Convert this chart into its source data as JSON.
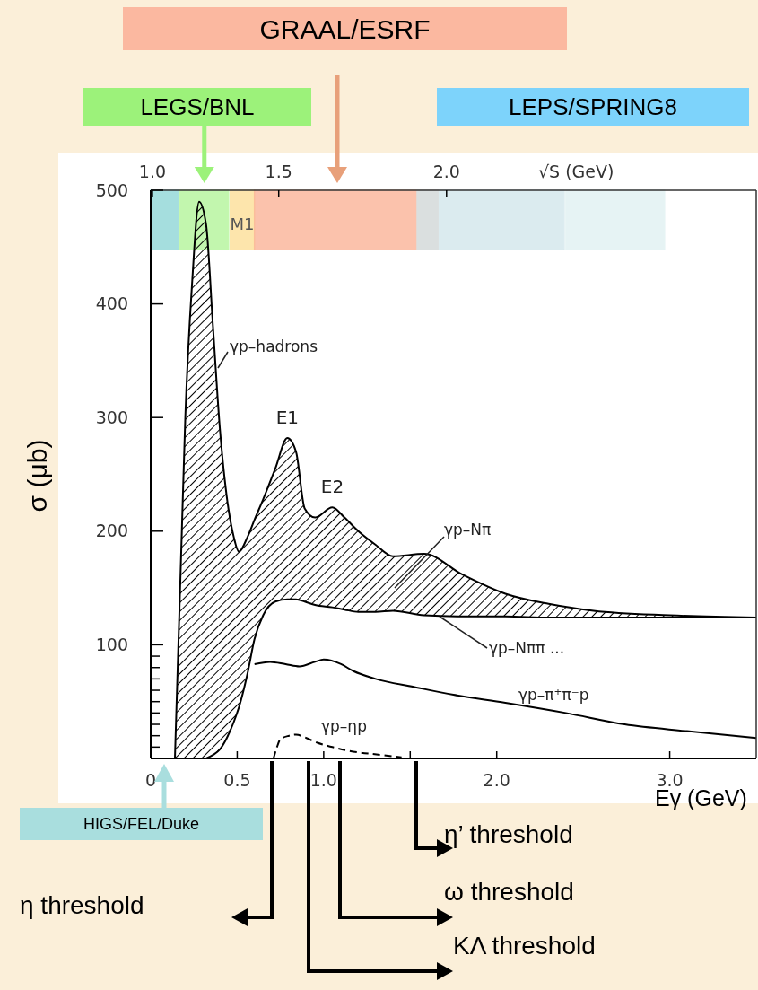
{
  "chart_data": {
    "type": "line",
    "xlabel": "Eγ (GeV)",
    "ylabel": "σ (μb)",
    "x2label": "√S (GeV)",
    "xlim": [
      0,
      3.5
    ],
    "xticks": [
      {
        "value": 0,
        "label": "0"
      },
      0.5,
      {
        "value": 1,
        "label": "1.0"
      },
      {
        "value": 1.5,
        "label": null
      },
      {
        "value": 2,
        "label": "2.0"
      },
      {
        "value": 3,
        "label": "3.0"
      }
    ],
    "ylim": [
      0,
      500
    ],
    "yticks": [
      {
        "value": 10,
        "label": null
      },
      {
        "value": 20,
        "label": null
      },
      {
        "value": 30,
        "label": null
      },
      {
        "value": 40,
        "label": null
      },
      {
        "value": 50,
        "label": null
      },
      {
        "value": 60,
        "label": null
      },
      {
        "value": 70,
        "label": null
      },
      {
        "value": 80,
        "label": null
      },
      {
        "value": 90,
        "label": null
      },
      100,
      200,
      300,
      400,
      500
    ],
    "series": [
      {
        "name": "γp–hadrons",
        "type": "line",
        "color": "#000000",
        "x": [
          0.14,
          0.16,
          0.18,
          0.2,
          0.24,
          0.28,
          0.32,
          0.36,
          0.4,
          0.44,
          0.48,
          0.51,
          0.56,
          0.6,
          0.65,
          0.72,
          0.79,
          0.84,
          0.89,
          0.95,
          1.05,
          1.12,
          1.2,
          1.3,
          1.4,
          1.58,
          1.8,
          2.05,
          2.3,
          2.56,
          3,
          3.5
        ],
        "values": [
          0,
          100,
          200,
          300,
          420,
          490,
          470,
          380,
          290,
          230,
          195,
          182,
          195,
          210,
          228,
          255,
          282,
          270,
          220,
          212,
          221,
          212,
          200,
          188,
          178,
          180,
          162,
          145,
          136,
          130,
          126,
          124
        ],
        "lower": [
          0,
          0,
          0,
          0,
          0,
          0,
          0,
          3,
          8,
          18,
          32,
          45,
          75,
          105,
          126,
          138,
          140,
          140,
          138,
          135,
          133,
          131,
          129,
          129,
          130,
          126,
          125,
          125,
          124,
          124,
          124,
          124
        ],
        "upper": [
          0,
          100,
          200,
          300,
          420,
          490,
          470,
          380,
          290,
          230,
          195,
          182,
          195,
          210,
          228,
          255,
          282,
          270,
          220,
          212,
          221,
          212,
          200,
          188,
          178,
          180,
          162,
          145,
          136,
          130,
          126,
          124
        ]
      },
      {
        "name": "γp–Nππ ...",
        "color": "#000000",
        "x": [
          0.32,
          0.36,
          0.4,
          0.44,
          0.48,
          0.51,
          0.56,
          0.6,
          0.65,
          0.72,
          0.79,
          0.84,
          0.89,
          0.95,
          1.05,
          1.12,
          1.2,
          1.3,
          1.4,
          1.58,
          1.8,
          2.05,
          2.3,
          2.56,
          3,
          3.5
        ],
        "values": [
          0,
          3,
          8,
          18,
          32,
          45,
          75,
          105,
          126,
          138,
          140,
          140,
          138,
          135,
          133,
          131,
          129,
          129,
          130,
          126,
          125,
          125,
          124,
          124,
          124,
          124
        ]
      },
      {
        "name": "γp–π⁺π⁻p",
        "color": "#000000",
        "x": [
          0.6,
          0.69,
          0.78,
          0.86,
          0.95,
          1.0,
          1.1,
          1.17,
          1.3,
          1.52,
          1.75,
          2.05,
          2.4,
          2.74,
          3.1,
          3.5
        ],
        "values": [
          83,
          85,
          83,
          81,
          85,
          87,
          83,
          77,
          70,
          63,
          56,
          49,
          40,
          30,
          24,
          18
        ]
      },
      {
        "name": "γp–ηp",
        "line_style": "dashed",
        "color": "#000000",
        "x": [
          0.71,
          0.73,
          0.75,
          0.8,
          0.84,
          0.9,
          0.96,
          1.05,
          1.17,
          1.34,
          1.45
        ],
        "values": [
          0,
          10,
          17,
          20,
          21,
          18,
          14,
          10,
          6,
          3,
          1
        ]
      }
    ],
    "bands": [
      {
        "axis": "x",
        "from": 0,
        "to": 0.16,
        "color": "#8fd6d6"
      },
      {
        "axis": "x",
        "from": 0.17,
        "to": 0.45,
        "color": "#b4f59a"
      },
      {
        "axis": "x",
        "from": 0.46,
        "to": 0.6,
        "color": "#fddf98"
      },
      {
        "axis": "x",
        "from": 0.6,
        "to": 1.66,
        "color": "#fbb498"
      },
      {
        "axis": "x",
        "from": 1.54,
        "to": 2.39,
        "color": "#d3e7ec"
      },
      {
        "axis": "x",
        "from": 2.4,
        "to": 2.97,
        "color": "#e0f1f2"
      }
    ],
    "annotations": [
      {
        "text": "E1",
        "x": 0.79,
        "y": 282
      },
      {
        "text": "E2",
        "x": 1.05,
        "y": 221
      },
      "M1",
      "γp–Nπ",
      {
        "text": "1.0",
        "x": 0.01,
        "y": 500
      },
      {
        "text": "1.5",
        "x": 0.74,
        "y": 500
      },
      {
        "text": "2.0",
        "x": 1.71,
        "y": 500
      },
      "η threshold",
      "KΛ threshold",
      "ω threshold",
      "η’ threshold",
      "HIGS/FEL/Duke",
      {
        "text": "LEGS/BNL",
        "x": 0.31,
        "y": 500
      },
      "GRAAL/ESRF",
      "LEPS/SPRING8"
    ]
  }
}
